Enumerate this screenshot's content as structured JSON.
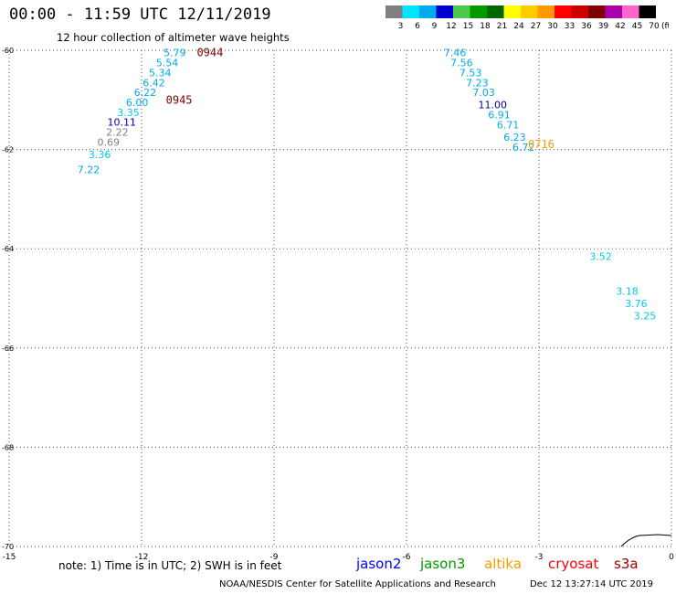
{
  "header": {
    "title": "00:00 - 11:59 UTC 12/11/2019",
    "subtitle": "12 hour collection of altimeter wave heights"
  },
  "colorbar": {
    "labels": [
      "3",
      "6",
      "9",
      "12",
      "15",
      "18",
      "21",
      "24",
      "27",
      "30",
      "33",
      "36",
      "39",
      "42",
      "45",
      "70"
    ],
    "unit": "(ft)",
    "colors": [
      "#808080",
      "#00e5ff",
      "#00aaee",
      "#0000d0",
      "#4cc84c",
      "#009900",
      "#006600",
      "#ffff00",
      "#ffcc00",
      "#ff9900",
      "#ff0000",
      "#cc0000",
      "#800000",
      "#aa00aa",
      "#ff66cc",
      "#000000"
    ]
  },
  "chart_data": {
    "type": "scatter",
    "xlim": [
      -15,
      0
    ],
    "ylim": [
      -70,
      -60
    ],
    "x_ticks": [
      "-15",
      "-12",
      "-9",
      "-6",
      "-3",
      "0"
    ],
    "y_ticks": [
      "-60",
      "-62",
      "-64",
      "-66",
      "-68",
      "-70"
    ],
    "grid": true,
    "points": [
      {
        "x": -11.25,
        "y": -60.05,
        "label": "5.79",
        "color": "#00aaee"
      },
      {
        "x": -11.42,
        "y": -60.25,
        "label": "5.54",
        "color": "#00aaee"
      },
      {
        "x": -11.58,
        "y": -60.45,
        "label": "5.34",
        "color": "#00aaee"
      },
      {
        "x": -11.72,
        "y": -60.65,
        "label": "6.42",
        "color": "#00aaee"
      },
      {
        "x": -11.92,
        "y": -60.85,
        "label": "6.22",
        "color": "#00aaee"
      },
      {
        "x": -12.1,
        "y": -61.05,
        "label": "6.00",
        "color": "#00aaee"
      },
      {
        "x": -12.3,
        "y": -61.25,
        "label": "3.35",
        "color": "#00ccee"
      },
      {
        "x": -12.45,
        "y": -61.45,
        "label": "10.11",
        "color": "#0000aa"
      },
      {
        "x": -12.55,
        "y": -61.65,
        "label": "2.22",
        "color": "#808080"
      },
      {
        "x": -12.75,
        "y": -61.85,
        "label": "0.69",
        "color": "#808080"
      },
      {
        "x": -12.95,
        "y": -62.1,
        "label": "3.36",
        "color": "#00ccee"
      },
      {
        "x": -13.2,
        "y": -62.4,
        "label": "7.22",
        "color": "#00aaee"
      },
      {
        "x": -4.9,
        "y": -60.05,
        "label": "7.46",
        "color": "#00aaee"
      },
      {
        "x": -4.75,
        "y": -60.25,
        "label": "7.56",
        "color": "#00aaee"
      },
      {
        "x": -4.55,
        "y": -60.45,
        "label": "7.53",
        "color": "#00aaee"
      },
      {
        "x": -4.4,
        "y": -60.65,
        "label": "7.23",
        "color": "#00aaee"
      },
      {
        "x": -4.25,
        "y": -60.85,
        "label": "7.03",
        "color": "#00aaee"
      },
      {
        "x": -4.05,
        "y": -61.1,
        "label": "11.00",
        "color": "#0000aa"
      },
      {
        "x": -3.9,
        "y": -61.3,
        "label": "6.91",
        "color": "#00aaee"
      },
      {
        "x": -3.7,
        "y": -61.5,
        "label": "6.71",
        "color": "#00aaee"
      },
      {
        "x": -3.55,
        "y": -61.75,
        "label": "6.23",
        "color": "#00aaee"
      },
      {
        "x": -3.35,
        "y": -61.95,
        "label": "6.72",
        "color": "#00aaee"
      },
      {
        "x": -1.6,
        "y": -64.15,
        "label": "3.52",
        "color": "#00ccee"
      },
      {
        "x": -1.0,
        "y": -64.85,
        "label": "3.18",
        "color": "#00ccee"
      },
      {
        "x": -0.8,
        "y": -65.1,
        "label": "3.76",
        "color": "#00ccee"
      },
      {
        "x": -0.6,
        "y": -65.35,
        "label": "3.25",
        "color": "#00ccee"
      }
    ],
    "time_labels": [
      {
        "x": -10.45,
        "y": -60.05,
        "label": "0944",
        "color": "#800000"
      },
      {
        "x": -11.15,
        "y": -61.0,
        "label": "0945",
        "color": "#800000"
      },
      {
        "x": -2.95,
        "y": -61.9,
        "label": "0716",
        "color": "#ff9900"
      }
    ]
  },
  "footer": {
    "note": "note: 1) Time is in UTC; 2) SWH is in feet",
    "legend": [
      {
        "name": "jason2",
        "color": "#0000ff"
      },
      {
        "name": "jason3",
        "color": "#009900"
      },
      {
        "name": "altika",
        "color": "#ff9900"
      },
      {
        "name": "cryosat",
        "color": "#ff0000"
      },
      {
        "name": "s3a",
        "color": "#990000"
      }
    ],
    "credit": "NOAA/NESDIS Center for Satellite Applications and Research",
    "stamp": "Dec 12 13:27:14 UTC 2019"
  }
}
